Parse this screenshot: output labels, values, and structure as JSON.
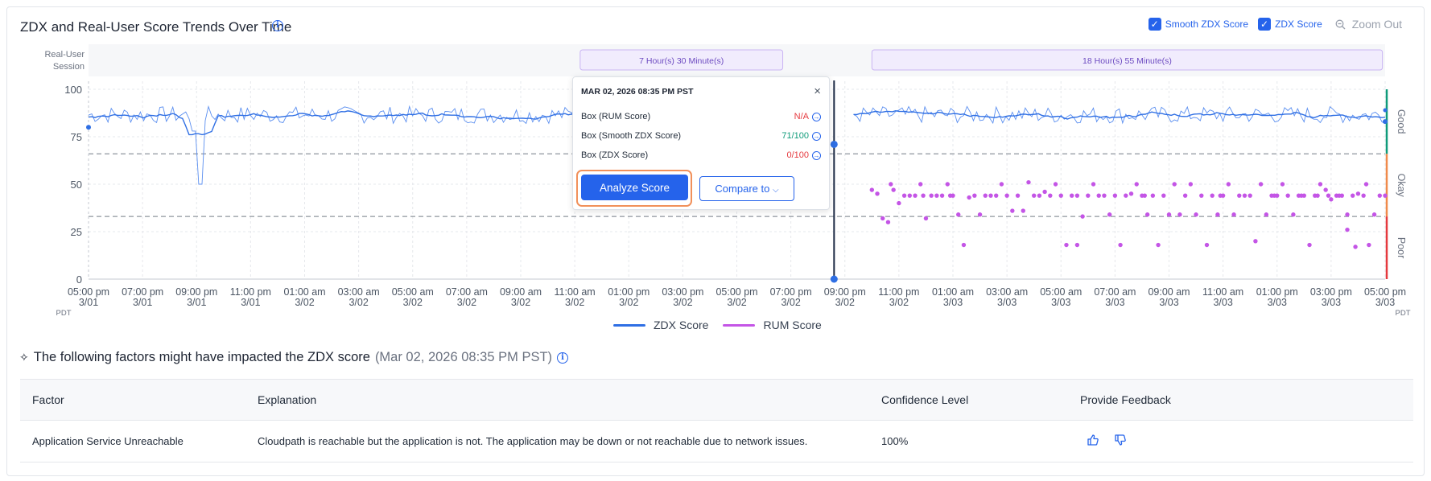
{
  "header": {
    "title": "ZDX and Real-User Score Trends Over Time",
    "info_icon": "info-icon",
    "smooth_label": "Smooth ZDX Score",
    "zdx_label": "ZDX Score",
    "zoom_label": "Zoom Out"
  },
  "chart_data": {
    "type": "line",
    "title": "ZDX and Real-User Score Trends Over Time",
    "session_label": [
      "Real-User",
      "Session"
    ],
    "session_bars": [
      "7 Hour(s) 30 Minute(s)",
      "18 Hour(s) 55 Minute(s)"
    ],
    "ylim": [
      0,
      100
    ],
    "yticks": [
      "100",
      "75",
      "50",
      "25",
      "0"
    ],
    "ytick_values": [
      100,
      75,
      50,
      25,
      0
    ],
    "thresholds": [
      66,
      33
    ],
    "zones": [
      "Good",
      "Okay",
      "Poor"
    ],
    "zone_colors": [
      "#0f9b7a",
      "#f08a4b",
      "#e5393e"
    ],
    "xticks": [
      [
        "05:00 pm",
        "3/01"
      ],
      [
        "07:00 pm",
        "3/01"
      ],
      [
        "09:00 pm",
        "3/01"
      ],
      [
        "11:00 pm",
        "3/01"
      ],
      [
        "01:00 am",
        "3/02"
      ],
      [
        "03:00 am",
        "3/02"
      ],
      [
        "05:00 am",
        "3/02"
      ],
      [
        "07:00 am",
        "3/02"
      ],
      [
        "09:00 am",
        "3/02"
      ],
      [
        "11:00 am",
        "3/02"
      ],
      [
        "01:00 pm",
        "3/02"
      ],
      [
        "03:00 pm",
        "3/02"
      ],
      [
        "05:00 pm",
        "3/02"
      ],
      [
        "07:00 pm",
        "3/02"
      ],
      [
        "09:00 pm",
        "3/02"
      ],
      [
        "11:00 pm",
        "3/02"
      ],
      [
        "01:00 am",
        "3/03"
      ],
      [
        "03:00 am",
        "3/03"
      ],
      [
        "05:00 am",
        "3/03"
      ],
      [
        "07:00 am",
        "3/03"
      ],
      [
        "09:00 am",
        "3/03"
      ],
      [
        "11:00 am",
        "3/03"
      ],
      [
        "01:00 pm",
        "3/03"
      ],
      [
        "03:00 pm",
        "3/03"
      ],
      [
        "05:00 pm",
        "3/03"
      ]
    ],
    "tz_label": "PDT",
    "x_range_hours": [
      0,
      48
    ],
    "cursor_hour": 27.6,
    "series": [
      {
        "name": "ZDX Score",
        "color": "#2f6fe4",
        "description": "fluctuating 78-90, dip to 50 at ~11:05 pm 3/01, drop to 0 at ~8:35 pm 3/02"
      },
      {
        "name": "RUM Score",
        "color": "#c455e6"
      }
    ],
    "rum_points": [
      [
        29.0,
        47
      ],
      [
        29.2,
        45
      ],
      [
        29.4,
        32
      ],
      [
        29.6,
        30
      ],
      [
        29.8,
        47
      ],
      [
        30.0,
        40
      ],
      [
        30.2,
        44
      ],
      [
        30.4,
        44
      ],
      [
        30.6,
        44
      ],
      [
        30.8,
        50
      ],
      [
        31.0,
        32
      ],
      [
        31.2,
        44
      ],
      [
        31.4,
        44
      ],
      [
        31.6,
        44
      ],
      [
        31.8,
        50
      ],
      [
        32.0,
        44
      ],
      [
        32.2,
        34
      ],
      [
        32.4,
        18
      ],
      [
        32.6,
        43
      ],
      [
        32.8,
        44
      ],
      [
        33.0,
        34
      ],
      [
        33.2,
        44
      ],
      [
        33.4,
        44
      ],
      [
        33.6,
        44
      ],
      [
        33.8,
        50
      ],
      [
        34.0,
        44
      ],
      [
        34.2,
        36
      ],
      [
        34.4,
        44
      ],
      [
        34.6,
        36
      ],
      [
        34.8,
        51
      ],
      [
        35.0,
        44
      ],
      [
        35.2,
        44
      ],
      [
        35.4,
        46
      ],
      [
        35.6,
        44
      ],
      [
        35.8,
        50
      ],
      [
        36.0,
        44
      ],
      [
        36.2,
        18
      ],
      [
        36.4,
        44
      ],
      [
        36.6,
        44
      ],
      [
        36.8,
        33
      ],
      [
        37.0,
        44
      ],
      [
        37.2,
        50
      ],
      [
        37.4,
        44
      ],
      [
        37.6,
        44
      ],
      [
        37.8,
        34
      ],
      [
        38.0,
        44
      ],
      [
        38.2,
        18
      ],
      [
        38.4,
        44
      ],
      [
        38.6,
        45
      ],
      [
        38.8,
        50
      ],
      [
        39.0,
        44
      ],
      [
        39.2,
        34
      ],
      [
        39.4,
        44
      ],
      [
        39.6,
        18
      ],
      [
        39.8,
        44
      ],
      [
        40.0,
        34
      ],
      [
        40.2,
        50
      ],
      [
        40.4,
        34
      ],
      [
        40.6,
        44
      ],
      [
        40.8,
        50
      ],
      [
        41.0,
        34
      ],
      [
        41.2,
        44
      ],
      [
        41.4,
        18
      ],
      [
        41.6,
        44
      ],
      [
        41.8,
        34
      ],
      [
        42.0,
        44
      ],
      [
        42.2,
        50
      ],
      [
        42.4,
        34
      ],
      [
        42.6,
        44
      ],
      [
        42.8,
        44
      ],
      [
        43.0,
        44
      ],
      [
        43.2,
        20
      ],
      [
        43.4,
        50
      ],
      [
        43.6,
        34
      ],
      [
        43.8,
        44
      ],
      [
        44.0,
        44
      ],
      [
        44.2,
        50
      ],
      [
        44.4,
        44
      ],
      [
        44.6,
        34
      ],
      [
        44.8,
        44
      ],
      [
        45.0,
        44
      ],
      [
        45.2,
        18
      ],
      [
        45.4,
        44
      ],
      [
        45.6,
        50
      ],
      [
        45.8,
        47
      ],
      [
        46.0,
        42
      ],
      [
        46.2,
        44
      ],
      [
        46.4,
        44
      ],
      [
        46.6,
        34
      ],
      [
        46.8,
        44
      ],
      [
        47.0,
        45
      ],
      [
        47.2,
        44
      ],
      [
        47.4,
        18
      ],
      [
        47.6,
        34
      ],
      [
        47.8,
        44
      ],
      [
        48.0,
        44
      ],
      [
        46.6,
        26
      ],
      [
        45.5,
        44
      ],
      [
        46.9,
        17
      ],
      [
        47.3,
        50
      ],
      [
        29.7,
        50
      ],
      [
        30.9,
        44
      ],
      [
        31.9,
        44
      ],
      [
        36.6,
        18
      ],
      [
        39.1,
        44
      ],
      [
        41.9,
        44
      ],
      [
        43.9,
        44
      ],
      [
        44.9,
        44
      ],
      [
        45.9,
        44
      ],
      [
        46.3,
        44
      ],
      [
        21.0,
        46
      ]
    ]
  },
  "tooltip": {
    "date": "MAR 02, 2026 08:35 PM PST",
    "close_icon": "close-icon",
    "rows": [
      {
        "label": "Box (RUM Score)",
        "value": "N/A",
        "color": "#e5393e"
      },
      {
        "label": "Box (Smooth ZDX Score)",
        "value": "71/100",
        "color": "#0f9b7a"
      },
      {
        "label": "Box (ZDX Score)",
        "value": "0/100",
        "color": "#e5393e"
      }
    ],
    "analyze_label": "Analyze Score",
    "compare_label": "Compare to"
  },
  "legend": [
    {
      "label": "ZDX Score",
      "color": "#2f6fe4"
    },
    {
      "label": "RUM Score",
      "color": "#c455e6"
    }
  ],
  "factors": {
    "title": "The following factors might have impacted the ZDX score",
    "subtitle": "(Mar 02, 2026 08:35 PM PST)",
    "columns": [
      "Factor",
      "Explanation",
      "Confidence Level",
      "Provide Feedback"
    ],
    "rows": [
      {
        "factor": "Application Service Unreachable",
        "explanation": "Cloudpath is reachable but the application is not. The application may be down or not reachable due to network issues.",
        "confidence": "100%"
      }
    ]
  }
}
